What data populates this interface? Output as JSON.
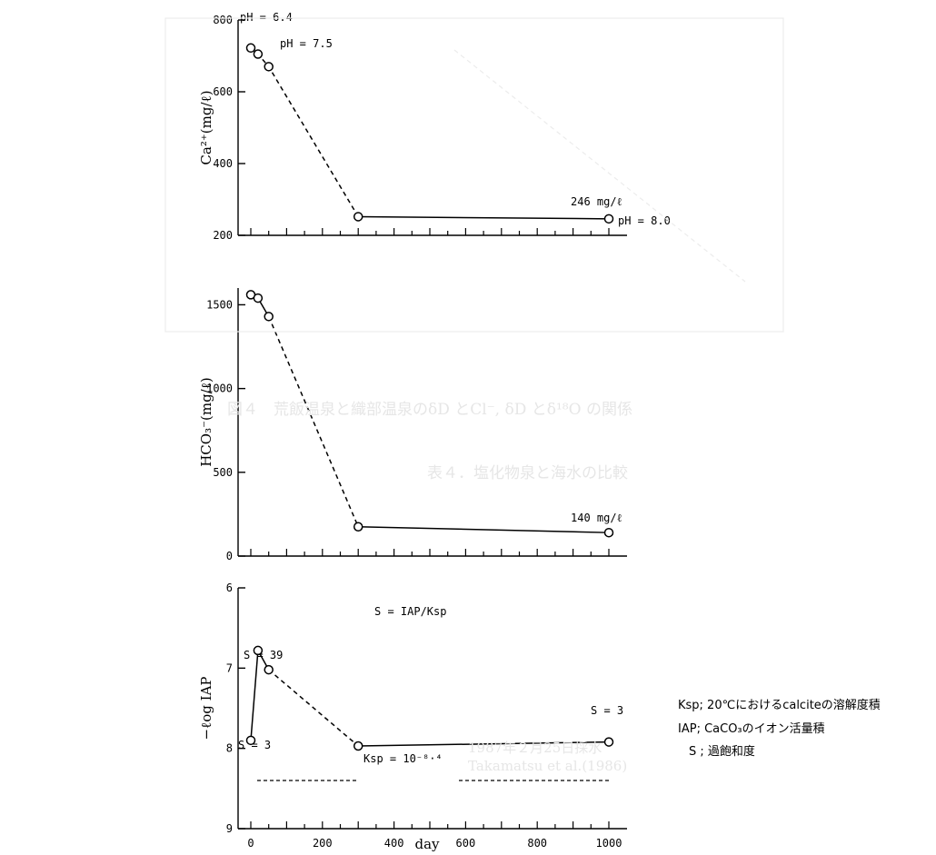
{
  "chart_data": [
    {
      "type": "line",
      "ylabel": "Ca²⁺(mg/ℓ)",
      "ylim": [
        200,
        800
      ],
      "yticks": [
        200,
        400,
        600,
        800
      ],
      "xlim": [
        0,
        1000
      ],
      "series": [
        {
          "style": "dashed",
          "x": [
            0,
            20,
            50,
            300
          ],
          "y": [
            722,
            705,
            670,
            252
          ]
        },
        {
          "style": "solid",
          "x": [
            300,
            1000
          ],
          "y": [
            252,
            246
          ]
        }
      ],
      "annotations": [
        {
          "text": "pH = 6.4",
          "x": 0,
          "y": 722
        },
        {
          "text": "pH = 7.5",
          "x": 20,
          "y": 705
        },
        {
          "text": "246 mg/ℓ",
          "x": 1000,
          "y": 246
        },
        {
          "text": "pH = 8.0",
          "x": 1000,
          "y": 246
        }
      ]
    },
    {
      "type": "line",
      "ylabel": "HCO₃⁻(mg/ℓ)",
      "ylim": [
        0,
        1600
      ],
      "yticks": [
        0,
        500,
        1000,
        1500
      ],
      "xlim": [
        0,
        1000
      ],
      "series": [
        {
          "style": "solid",
          "x": [
            0,
            20,
            50
          ],
          "y": [
            1560,
            1540,
            1430
          ]
        },
        {
          "style": "dashed",
          "x": [
            50,
            300
          ],
          "y": [
            1430,
            175
          ]
        },
        {
          "style": "solid",
          "x": [
            300,
            1000
          ],
          "y": [
            175,
            140
          ]
        }
      ],
      "annotations": [
        {
          "text": "140 mg/ℓ",
          "x": 1000,
          "y": 140
        }
      ]
    },
    {
      "type": "line",
      "ylabel": "−ℓog IAP",
      "ylim": [
        9,
        6
      ],
      "yticks": [
        6,
        7,
        8,
        9
      ],
      "xlim": [
        0,
        1000
      ],
      "xticks": [
        0,
        200,
        400,
        600,
        800,
        1000
      ],
      "xlabel": "day",
      "series": [
        {
          "style": "solid",
          "x": [
            0,
            20
          ],
          "y": [
            7.9,
            6.78
          ]
        },
        {
          "style": "solid",
          "x": [
            20,
            50
          ],
          "y": [
            6.78,
            7.02
          ]
        },
        {
          "style": "dashed",
          "x": [
            50,
            300
          ],
          "y": [
            7.02,
            7.97
          ]
        },
        {
          "style": "solid",
          "x": [
            300,
            1000
          ],
          "y": [
            7.97,
            7.92
          ]
        }
      ],
      "ksp_level": 8.4,
      "annotations": [
        {
          "text": "S = IAP/Ksp",
          "x": 400,
          "y": 6.55
        },
        {
          "text": "S = 39",
          "x": 20,
          "y": 6.78
        },
        {
          "text": "S = 3",
          "x": 0,
          "y": 7.9
        },
        {
          "text": "S = 3",
          "x": 1000,
          "y": 7.92
        },
        {
          "text": "Ksp = 10⁻⁸·⁴",
          "x": 390,
          "y": 8.4
        }
      ]
    }
  ],
  "legend": [
    "Ksp; 20℃におけるcalciteの溶解度積",
    "IAP; CaCO₃のイオン活量積",
    "S ; 過飽和度"
  ],
  "ghost_text": {
    "fig_caption": "図４　荒飯温泉と織部温泉のδD とCl⁻, δD とδ¹⁸O の関係",
    "table_title": "表４．塩化物泉と海水の比較",
    "note1": "1987年２月25日採水",
    "note2": "Takamatsu et al.(1986)"
  }
}
